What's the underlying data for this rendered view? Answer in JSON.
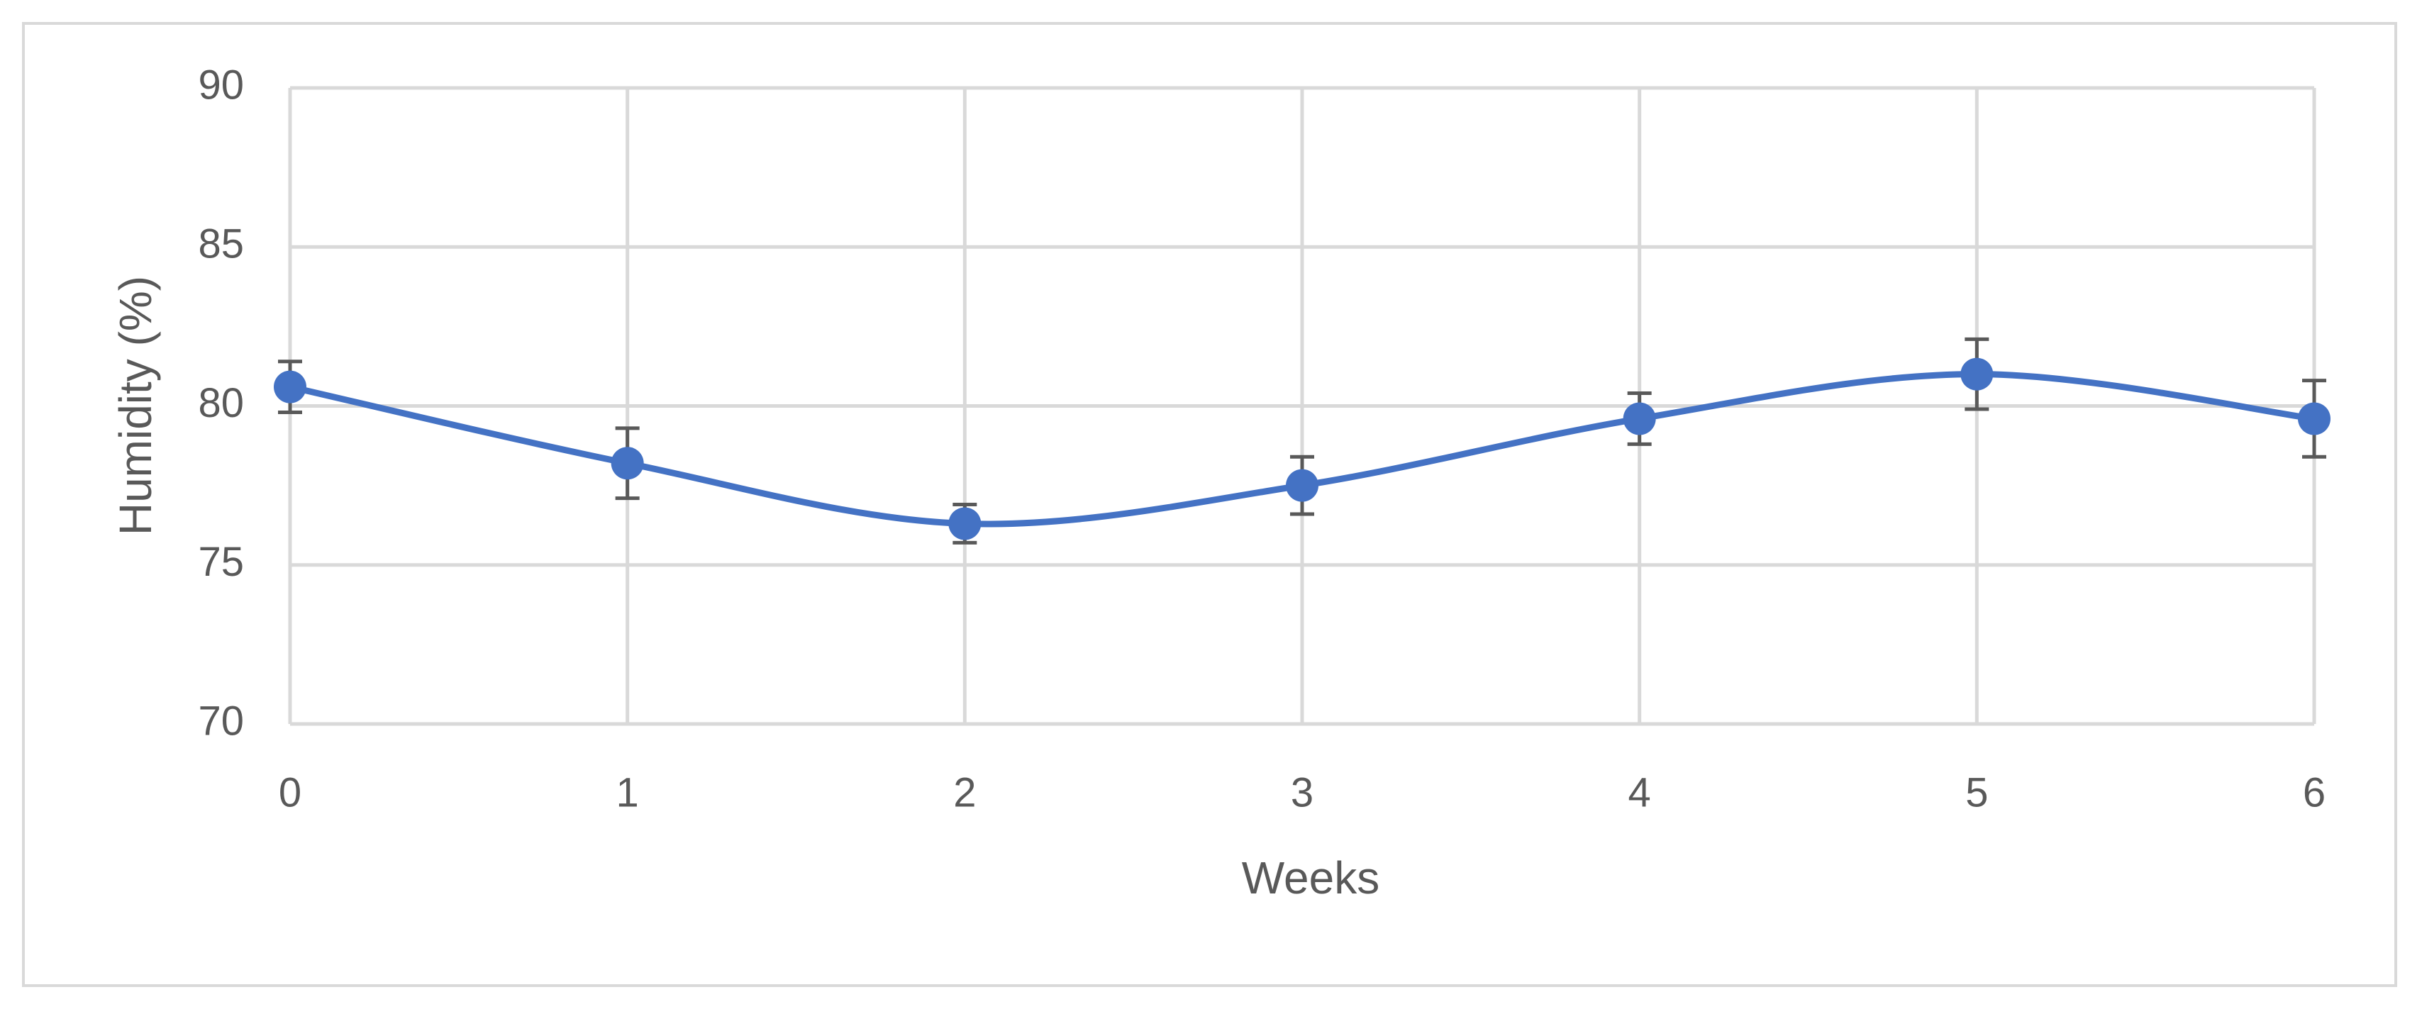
{
  "chart_data": {
    "type": "line",
    "x": [
      0,
      1,
      2,
      3,
      4,
      5,
      6
    ],
    "values": [
      80.6,
      78.2,
      76.3,
      77.5,
      79.6,
      81.0,
      79.6
    ],
    "errors": [
      0.8,
      1.1,
      0.6,
      0.9,
      0.8,
      1.1,
      1.2
    ],
    "color": "#4472c4",
    "smooth": true,
    "xlabel": "Weeks",
    "ylabel": "Humidity (%)",
    "xlim": [
      0,
      6
    ],
    "xticks": [
      0,
      1,
      2,
      3,
      4,
      5,
      6
    ],
    "ylim": [
      70,
      90
    ],
    "yticks": [
      70,
      75,
      80,
      85,
      90
    ],
    "grid": true
  }
}
